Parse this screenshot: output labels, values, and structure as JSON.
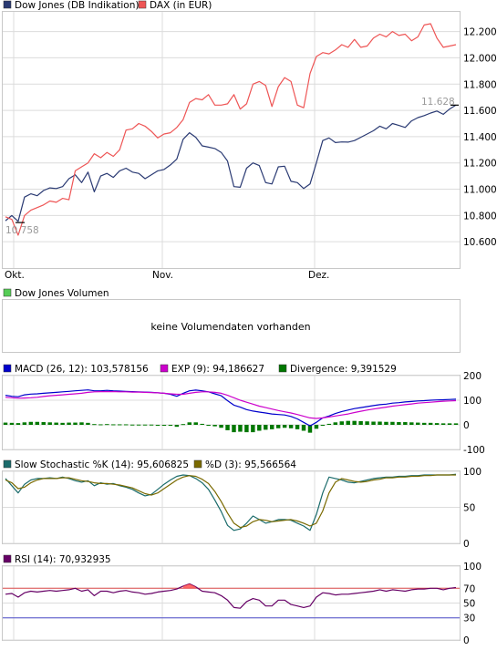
{
  "legend": {
    "main": [
      {
        "label": "Dow Jones (DB Indikation)",
        "color": "#2a3a73"
      },
      {
        "label": "DAX (in EUR)",
        "color": "#ee5555"
      }
    ],
    "volume": {
      "label": "Dow Jones Volumen",
      "color": "#55cc55"
    },
    "volume_message": "keine Volumendaten vorhanden",
    "macd": [
      {
        "label": "MACD (26, 12): 103,578156",
        "color": "#0000cc"
      },
      {
        "label": "EXP (9): 94,186627",
        "color": "#cc00cc"
      },
      {
        "label": "Divergence: 9,391529",
        "color": "#007700"
      }
    ],
    "stoch": [
      {
        "label": "Slow Stochastic %K (14): 95,606825",
        "color": "#1a6b6b"
      },
      {
        "label": "%D (3): 95,566564",
        "color": "#7a6a00"
      }
    ],
    "rsi": [
      {
        "label": "RSI (14): 70,932935",
        "color": "#660066"
      }
    ]
  },
  "chart_data": [
    {
      "type": "line",
      "panel": "price",
      "x_labels": [
        "Okt.",
        "Nov.",
        "Dez."
      ],
      "y_ticks": [
        "12.200",
        "12.000",
        "11.800",
        "11.600",
        "11.400",
        "11.200",
        "11.000",
        "10.800",
        "10.600"
      ],
      "ylim": [
        10400,
        12350
      ],
      "grid": true,
      "annotations": {
        "start_value": "10.758",
        "end_value": "11.628"
      },
      "series": [
        {
          "name": "Dow Jones (DB Indikation)",
          "color": "#2a3a73",
          "values": [
            10760,
            10800,
            10755,
            10940,
            10965,
            10950,
            10990,
            11010,
            11005,
            11020,
            11080,
            11110,
            11050,
            11130,
            10980,
            11100,
            11120,
            11090,
            11140,
            11160,
            11130,
            11120,
            11080,
            11110,
            11140,
            11150,
            11185,
            11230,
            11380,
            11430,
            11395,
            11330,
            11320,
            11310,
            11280,
            11215,
            11020,
            11015,
            11160,
            11200,
            11180,
            11050,
            11040,
            11170,
            11175,
            11060,
            11050,
            11005,
            11040,
            11200,
            11370,
            11390,
            11355,
            11360,
            11358,
            11370,
            11395,
            11420,
            11445,
            11480,
            11460,
            11500,
            11485,
            11470,
            11520,
            11545,
            11560,
            11580,
            11595,
            11570,
            11610,
            11640
          ]
        },
        {
          "name": "DAX (in EUR)",
          "color": "#ee5555",
          "values": [
            10790,
            10770,
            10650,
            10800,
            10840,
            10860,
            10880,
            10910,
            10900,
            10930,
            10920,
            11140,
            11170,
            11200,
            11270,
            11240,
            11280,
            11250,
            11300,
            11450,
            11460,
            11500,
            11480,
            11440,
            11390,
            11420,
            11430,
            11470,
            11530,
            11660,
            11690,
            11680,
            11720,
            11640,
            11640,
            11650,
            11720,
            11610,
            11650,
            11800,
            11820,
            11790,
            11630,
            11780,
            11850,
            11820,
            11640,
            11620,
            11880,
            12010,
            12040,
            12030,
            12060,
            12100,
            12080,
            12140,
            12080,
            12090,
            12150,
            12180,
            12160,
            12200,
            12170,
            12180,
            12130,
            12160,
            12250,
            12260,
            12150,
            12080,
            12090,
            12100
          ]
        }
      ]
    },
    {
      "type": "line",
      "panel": "macd",
      "y_ticks": [
        "200",
        "100",
        "0",
        "-100"
      ],
      "ylim": [
        -100,
        200
      ],
      "series": [
        {
          "name": "MACD (26, 12): 103,578156",
          "color": "#0000cc",
          "values": [
            120,
            116,
            114,
            122,
            125,
            126,
            128,
            130,
            132,
            134,
            136,
            138,
            140,
            142,
            138,
            138,
            140,
            138,
            137,
            136,
            135,
            134,
            133,
            132,
            130,
            128,
            124,
            116,
            128,
            138,
            141,
            138,
            134,
            126,
            118,
            98,
            80,
            72,
            62,
            56,
            52,
            48,
            44,
            42,
            40,
            34,
            24,
            10,
            -4,
            10,
            28,
            36,
            46,
            54,
            60,
            66,
            70,
            74,
            78,
            82,
            84,
            88,
            90,
            93,
            95,
            97,
            98,
            100,
            101,
            102,
            103,
            104
          ]
        },
        {
          "name": "EXP (9): 94,186627",
          "color": "#cc00cc",
          "values": [
            112,
            110,
            108,
            109,
            110,
            112,
            115,
            118,
            120,
            122,
            124,
            126,
            128,
            132,
            134,
            135,
            135,
            135,
            134,
            134,
            133,
            133,
            132,
            131,
            130,
            128,
            126,
            124,
            124,
            128,
            132,
            134,
            134,
            132,
            128,
            120,
            110,
            100,
            92,
            84,
            76,
            70,
            64,
            58,
            53,
            48,
            42,
            35,
            28,
            26,
            28,
            32,
            36,
            40,
            44,
            50,
            55,
            60,
            64,
            68,
            72,
            76,
            79,
            82,
            85,
            88,
            90,
            92,
            94,
            96,
            97,
            98
          ]
        }
      ],
      "bars": {
        "name": "Divergence: 9,391529",
        "color": "#007700",
        "values": [
          9,
          8,
          7,
          10,
          12,
          12,
          11,
          10,
          9,
          8,
          9,
          9,
          10,
          8,
          3,
          2,
          3,
          2,
          2,
          2,
          1,
          1,
          1,
          1,
          0,
          0,
          -2,
          -8,
          3,
          10,
          10,
          4,
          0,
          -6,
          -12,
          -22,
          -30,
          -28,
          -30,
          -30,
          -24,
          -20,
          -18,
          -14,
          -12,
          -14,
          -18,
          -24,
          -32,
          -16,
          0,
          4,
          10,
          14,
          16,
          16,
          15,
          14,
          13,
          13,
          12,
          12,
          11,
          11,
          10,
          9,
          8,
          8,
          7,
          6,
          6,
          6
        ]
      }
    },
    {
      "type": "line",
      "panel": "stochastic",
      "y_ticks": [
        "100",
        "50",
        "0"
      ],
      "ylim": [
        0,
        100
      ],
      "series": [
        {
          "name": "Slow Stochastic %K (14): 95,606825",
          "color": "#1a6b6b",
          "values": [
            90,
            80,
            70,
            82,
            88,
            90,
            90,
            91,
            90,
            92,
            90,
            87,
            85,
            87,
            80,
            84,
            82,
            83,
            80,
            78,
            75,
            70,
            66,
            68,
            75,
            82,
            88,
            93,
            95,
            94,
            90,
            84,
            75,
            60,
            44,
            25,
            18,
            20,
            28,
            38,
            33,
            28,
            30,
            33,
            33,
            32,
            28,
            24,
            18,
            40,
            70,
            92,
            90,
            88,
            85,
            84,
            86,
            88,
            90,
            91,
            92,
            92,
            93,
            93,
            94,
            94,
            95,
            95,
            95,
            95,
            95,
            96
          ]
        },
        {
          "name": "%D (3): 95,566564",
          "color": "#7a6a00",
          "values": [
            88,
            84,
            76,
            78,
            84,
            88,
            90,
            90,
            90,
            91,
            91,
            89,
            87,
            86,
            84,
            83,
            83,
            82,
            81,
            79,
            77,
            73,
            69,
            67,
            70,
            76,
            82,
            88,
            92,
            94,
            93,
            89,
            83,
            72,
            58,
            42,
            28,
            22,
            24,
            30,
            33,
            32,
            30,
            31,
            32,
            33,
            31,
            28,
            24,
            28,
            45,
            70,
            85,
            90,
            88,
            86,
            85,
            86,
            88,
            89,
            91,
            91,
            92,
            92,
            93,
            93,
            94,
            94,
            95,
            95,
            95,
            95
          ]
        }
      ]
    },
    {
      "type": "line",
      "panel": "rsi",
      "y_ticks": [
        "100",
        "70",
        "50",
        "30",
        "0"
      ],
      "ylim": [
        0,
        100
      ],
      "reference_lines": [
        70,
        30
      ],
      "series": [
        {
          "name": "RSI (14): 70,932935",
          "color": "#660066",
          "values": [
            62,
            63,
            58,
            64,
            66,
            65,
            66,
            67,
            66,
            67,
            68,
            70,
            66,
            68,
            60,
            66,
            66,
            64,
            66,
            67,
            65,
            64,
            62,
            63,
            65,
            66,
            67,
            69,
            73,
            76,
            72,
            66,
            65,
            64,
            60,
            54,
            44,
            43,
            52,
            56,
            54,
            46,
            46,
            54,
            54,
            48,
            46,
            44,
            46,
            58,
            64,
            63,
            61,
            62,
            62,
            63,
            64,
            65,
            66,
            68,
            66,
            68,
            67,
            66,
            68,
            69,
            69,
            70,
            70,
            68,
            70,
            71
          ]
        }
      ]
    }
  ]
}
